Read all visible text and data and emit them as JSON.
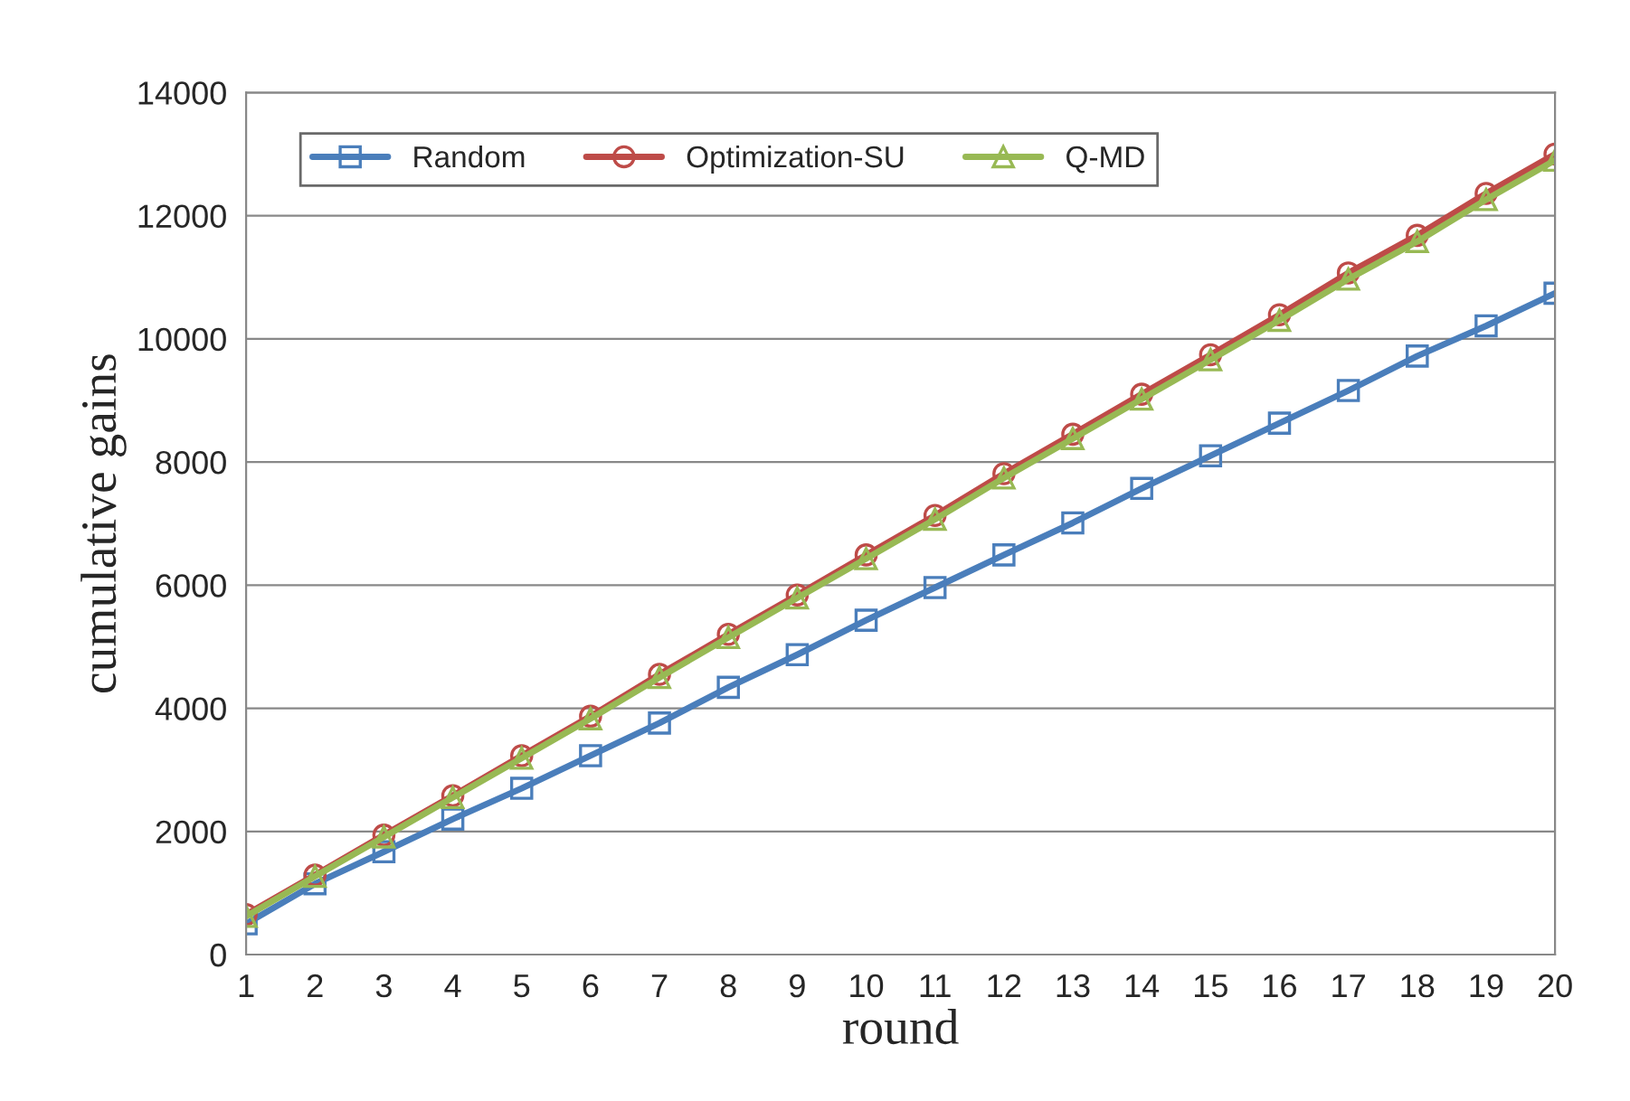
{
  "chart_data": {
    "type": "line",
    "xlabel": "round",
    "ylabel": "cumulative gains",
    "x": [
      1,
      2,
      3,
      4,
      5,
      6,
      7,
      8,
      9,
      10,
      11,
      12,
      13,
      14,
      15,
      16,
      17,
      18,
      19,
      20
    ],
    "series": [
      {
        "name": "Random",
        "color": "#4a7ebb",
        "marker": "square",
        "values": [
          500,
          1150,
          1670,
          2200,
          2700,
          3230,
          3760,
          4340,
          4870,
          5430,
          5960,
          6490,
          7010,
          7570,
          8100,
          8630,
          9160,
          9720,
          10210,
          10740
        ]
      },
      {
        "name": "Optimization-SU",
        "color": "#be4b48",
        "marker": "circle",
        "values": [
          650,
          1290,
          1940,
          2580,
          3230,
          3870,
          4550,
          5200,
          5840,
          6490,
          7130,
          7810,
          8450,
          9100,
          9740,
          10390,
          11070,
          11680,
          12360,
          13000
        ]
      },
      {
        "name": "Q-MD",
        "color": "#98b954",
        "marker": "triangle",
        "values": [
          620,
          1270,
          1910,
          2550,
          3190,
          3830,
          4500,
          5150,
          5790,
          6430,
          7070,
          7740,
          8380,
          9020,
          9660,
          10300,
          10970,
          11580,
          12260,
          12900
        ]
      }
    ],
    "xlim": [
      1,
      20
    ],
    "xticks": [
      1,
      2,
      3,
      4,
      5,
      6,
      7,
      8,
      9,
      10,
      11,
      12,
      13,
      14,
      15,
      16,
      17,
      18,
      19,
      20
    ],
    "ylim": [
      0,
      14000
    ],
    "yticks": [
      0,
      2000,
      4000,
      6000,
      8000,
      10000,
      12000,
      14000
    ],
    "grid": "y",
    "legend": "top left",
    "line_style": "solid"
  }
}
